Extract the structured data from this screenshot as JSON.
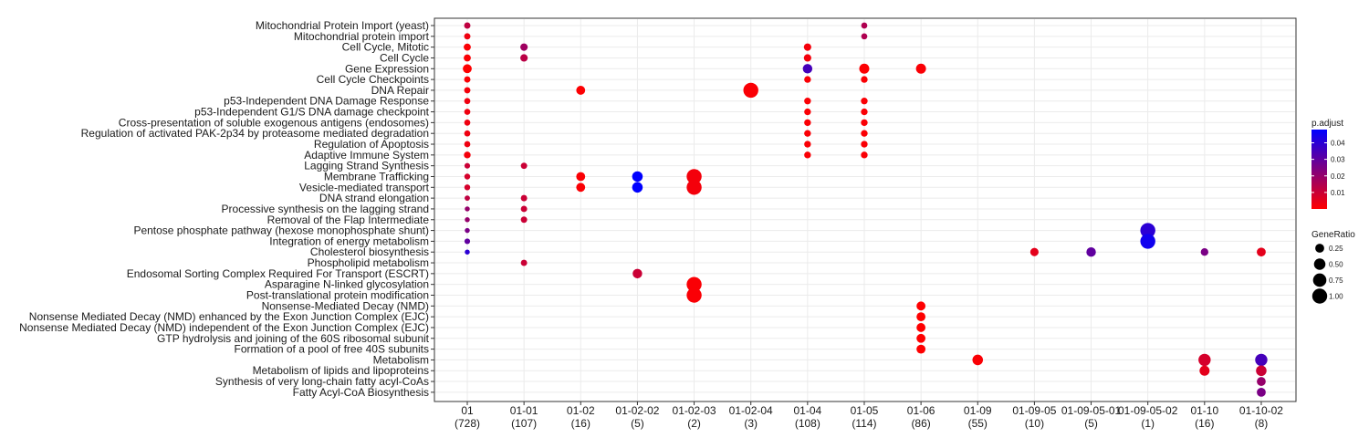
{
  "chart_data": {
    "type": "scatter",
    "x_categories": [
      {
        "label": "01",
        "count": "(728)"
      },
      {
        "label": "01-01",
        "count": "(107)"
      },
      {
        "label": "01-02",
        "count": "(16)"
      },
      {
        "label": "01-02-02",
        "count": "(5)"
      },
      {
        "label": "01-02-03",
        "count": "(2)"
      },
      {
        "label": "01-02-04",
        "count": "(3)"
      },
      {
        "label": "01-04",
        "count": "(108)"
      },
      {
        "label": "01-05",
        "count": "(114)"
      },
      {
        "label": "01-06",
        "count": "(86)"
      },
      {
        "label": "01-09",
        "count": "(55)"
      },
      {
        "label": "01-09-05",
        "count": "(10)"
      },
      {
        "label": "01-09-05-01",
        "count": "(5)"
      },
      {
        "label": "01-09-05-02",
        "count": "(1)"
      },
      {
        "label": "01-10",
        "count": "(16)"
      },
      {
        "label": "01-10-02",
        "count": "(8)"
      }
    ],
    "y_categories": [
      "Mitochondrial Protein Import (yeast)",
      "Mitochondrial protein import",
      "Cell Cycle, Mitotic",
      "Cell Cycle",
      "Gene Expression",
      "Cell Cycle Checkpoints",
      "DNA Repair",
      "p53-Independent DNA Damage Response",
      "p53-Independent G1/S DNA damage checkpoint",
      "Cross-presentation of soluble exogenous antigens (endosomes)",
      "Regulation of activated PAK-2p34 by proteasome mediated degradation",
      "Regulation of Apoptosis",
      "Adaptive Immune System",
      "Lagging Strand Synthesis",
      "Membrane Trafficking",
      "Vesicle-mediated transport",
      "DNA strand elongation",
      "Processive synthesis on the lagging strand",
      "Removal of the Flap Intermediate",
      "Pentose phosphate pathway (hexose monophosphate shunt)",
      "Integration of energy metabolism",
      "Cholesterol biosynthesis",
      "Phospholipid metabolism",
      "Endosomal Sorting Complex Required For Transport (ESCRT)",
      "Asparagine N-linked glycosylation",
      "Post-translational protein modification",
      "Nonsense-Mediated Decay (NMD)",
      "Nonsense Mediated Decay (NMD) enhanced by the Exon Junction Complex (EJC)",
      "Nonsense Mediated Decay (NMD) independent of the Exon Junction Complex (EJC)",
      "GTP hydrolysis and joining of the 60S ribosomal subunit",
      "Formation of a pool of free 40S subunits",
      "Metabolism",
      "Metabolism of lipids and lipoproteins",
      "Synthesis of very long-chain fatty acyl-CoAs",
      "Fatty Acyl-CoA Biosynthesis"
    ],
    "points": [
      {
        "x": 0,
        "y": 0,
        "ratio": 0.08,
        "padj": 0.012
      },
      {
        "x": 0,
        "y": 1,
        "ratio": 0.08,
        "padj": 0.003
      },
      {
        "x": 0,
        "y": 2,
        "ratio": 0.12,
        "padj": 0.001
      },
      {
        "x": 0,
        "y": 3,
        "ratio": 0.12,
        "padj": 0.001
      },
      {
        "x": 0,
        "y": 4,
        "ratio": 0.25,
        "padj": 0.0001
      },
      {
        "x": 0,
        "y": 5,
        "ratio": 0.08,
        "padj": 0.001
      },
      {
        "x": 0,
        "y": 6,
        "ratio": 0.08,
        "padj": 0.002
      },
      {
        "x": 0,
        "y": 7,
        "ratio": 0.07,
        "padj": 0.003
      },
      {
        "x": 0,
        "y": 8,
        "ratio": 0.07,
        "padj": 0.003
      },
      {
        "x": 0,
        "y": 9,
        "ratio": 0.07,
        "padj": 0.003
      },
      {
        "x": 0,
        "y": 10,
        "ratio": 0.07,
        "padj": 0.003
      },
      {
        "x": 0,
        "y": 11,
        "ratio": 0.07,
        "padj": 0.003
      },
      {
        "x": 0,
        "y": 12,
        "ratio": 0.1,
        "padj": 0.002
      },
      {
        "x": 0,
        "y": 13,
        "ratio": 0.05,
        "padj": 0.01
      },
      {
        "x": 0,
        "y": 14,
        "ratio": 0.06,
        "padj": 0.008
      },
      {
        "x": 0,
        "y": 15,
        "ratio": 0.06,
        "padj": 0.008
      },
      {
        "x": 0,
        "y": 16,
        "ratio": 0.04,
        "padj": 0.012
      },
      {
        "x": 0,
        "y": 17,
        "ratio": 0.03,
        "padj": 0.02
      },
      {
        "x": 0,
        "y": 18,
        "ratio": 0.03,
        "padj": 0.02
      },
      {
        "x": 0,
        "y": 19,
        "ratio": 0.03,
        "padj": 0.025
      },
      {
        "x": 0,
        "y": 20,
        "ratio": 0.05,
        "padj": 0.03
      },
      {
        "x": 0,
        "y": 21,
        "ratio": 0.03,
        "padj": 0.04
      },
      {
        "x": 1,
        "y": 2,
        "ratio": 0.14,
        "padj": 0.018
      },
      {
        "x": 1,
        "y": 3,
        "ratio": 0.14,
        "padj": 0.013
      },
      {
        "x": 1,
        "y": 13,
        "ratio": 0.08,
        "padj": 0.01
      },
      {
        "x": 1,
        "y": 16,
        "ratio": 0.08,
        "padj": 0.01
      },
      {
        "x": 1,
        "y": 17,
        "ratio": 0.08,
        "padj": 0.01
      },
      {
        "x": 1,
        "y": 18,
        "ratio": 0.08,
        "padj": 0.01
      },
      {
        "x": 1,
        "y": 22,
        "ratio": 0.08,
        "padj": 0.01
      },
      {
        "x": 2,
        "y": 6,
        "ratio": 0.25,
        "padj": 0.0005
      },
      {
        "x": 2,
        "y": 14,
        "ratio": 0.25,
        "padj": 0.001
      },
      {
        "x": 2,
        "y": 15,
        "ratio": 0.25,
        "padj": 0.001
      },
      {
        "x": 3,
        "y": 14,
        "ratio": 0.4,
        "padj": 0.048
      },
      {
        "x": 3,
        "y": 15,
        "ratio": 0.4,
        "padj": 0.048
      },
      {
        "x": 3,
        "y": 23,
        "ratio": 0.3,
        "padj": 0.01
      },
      {
        "x": 4,
        "y": 14,
        "ratio": 1.0,
        "padj": 0.002
      },
      {
        "x": 4,
        "y": 15,
        "ratio": 1.0,
        "padj": 0.002
      },
      {
        "x": 4,
        "y": 24,
        "ratio": 1.0,
        "padj": 0.001
      },
      {
        "x": 4,
        "y": 25,
        "ratio": 1.0,
        "padj": 0.001
      },
      {
        "x": 5,
        "y": 6,
        "ratio": 1.0,
        "padj": 0.001
      },
      {
        "x": 6,
        "y": 2,
        "ratio": 0.14,
        "padj": 0.002
      },
      {
        "x": 6,
        "y": 3,
        "ratio": 0.14,
        "padj": 0.002
      },
      {
        "x": 6,
        "y": 4,
        "ratio": 0.3,
        "padj": 0.035
      },
      {
        "x": 6,
        "y": 5,
        "ratio": 0.1,
        "padj": 0.001
      },
      {
        "x": 6,
        "y": 7,
        "ratio": 0.1,
        "padj": 0.001
      },
      {
        "x": 6,
        "y": 8,
        "ratio": 0.1,
        "padj": 0.001
      },
      {
        "x": 6,
        "y": 9,
        "ratio": 0.1,
        "padj": 0.001
      },
      {
        "x": 6,
        "y": 10,
        "ratio": 0.1,
        "padj": 0.001
      },
      {
        "x": 6,
        "y": 11,
        "ratio": 0.1,
        "padj": 0.001
      },
      {
        "x": 6,
        "y": 12,
        "ratio": 0.1,
        "padj": 0.001
      },
      {
        "x": 7,
        "y": 0,
        "ratio": 0.07,
        "padj": 0.015
      },
      {
        "x": 7,
        "y": 1,
        "ratio": 0.07,
        "padj": 0.015
      },
      {
        "x": 7,
        "y": 4,
        "ratio": 0.35,
        "padj": 0.0005
      },
      {
        "x": 7,
        "y": 5,
        "ratio": 0.1,
        "padj": 0.001
      },
      {
        "x": 7,
        "y": 7,
        "ratio": 0.1,
        "padj": 0.001
      },
      {
        "x": 7,
        "y": 8,
        "ratio": 0.1,
        "padj": 0.001
      },
      {
        "x": 7,
        "y": 9,
        "ratio": 0.1,
        "padj": 0.001
      },
      {
        "x": 7,
        "y": 10,
        "ratio": 0.1,
        "padj": 0.001
      },
      {
        "x": 7,
        "y": 11,
        "ratio": 0.1,
        "padj": 0.001
      },
      {
        "x": 7,
        "y": 12,
        "ratio": 0.1,
        "padj": 0.001
      },
      {
        "x": 8,
        "y": 4,
        "ratio": 0.35,
        "padj": 0.001
      },
      {
        "x": 8,
        "y": 26,
        "ratio": 0.25,
        "padj": 0.0001
      },
      {
        "x": 8,
        "y": 27,
        "ratio": 0.25,
        "padj": 0.0001
      },
      {
        "x": 8,
        "y": 28,
        "ratio": 0.25,
        "padj": 0.0001
      },
      {
        "x": 8,
        "y": 29,
        "ratio": 0.25,
        "padj": 0.0001
      },
      {
        "x": 8,
        "y": 30,
        "ratio": 0.25,
        "padj": 0.0001
      },
      {
        "x": 9,
        "y": 31,
        "ratio": 0.4,
        "padj": 0.001
      },
      {
        "x": 10,
        "y": 21,
        "ratio": 0.2,
        "padj": 0.005
      },
      {
        "x": 11,
        "y": 21,
        "ratio": 0.3,
        "padj": 0.03
      },
      {
        "x": 12,
        "y": 19,
        "ratio": 1.0,
        "padj": 0.04
      },
      {
        "x": 12,
        "y": 20,
        "ratio": 1.0,
        "padj": 0.045
      },
      {
        "x": 13,
        "y": 21,
        "ratio": 0.15,
        "padj": 0.025
      },
      {
        "x": 13,
        "y": 31,
        "ratio": 0.6,
        "padj": 0.008
      },
      {
        "x": 13,
        "y": 32,
        "ratio": 0.35,
        "padj": 0.005
      },
      {
        "x": 14,
        "y": 21,
        "ratio": 0.25,
        "padj": 0.005
      },
      {
        "x": 14,
        "y": 31,
        "ratio": 0.6,
        "padj": 0.035
      },
      {
        "x": 14,
        "y": 32,
        "ratio": 0.4,
        "padj": 0.01
      },
      {
        "x": 14,
        "y": 33,
        "ratio": 0.25,
        "padj": 0.02
      },
      {
        "x": 14,
        "y": 34,
        "ratio": 0.25,
        "padj": 0.025
      }
    ],
    "legend": {
      "color": {
        "title": "p.adjust",
        "ticks": [
          0.01,
          0.02,
          0.03,
          0.04
        ],
        "tick_labels": [
          "0.01",
          "0.02",
          "0.03",
          "0.04"
        ],
        "range": [
          0.0,
          0.048
        ],
        "low_color": "#ff0000",
        "high_color": "#0000ff"
      },
      "size": {
        "title": "GeneRatio",
        "values": [
          0.25,
          0.5,
          0.75,
          1.0
        ],
        "labels": [
          "0.25",
          "0.50",
          "0.75",
          "1.00"
        ]
      },
      "placement": "right"
    },
    "grid": true
  }
}
